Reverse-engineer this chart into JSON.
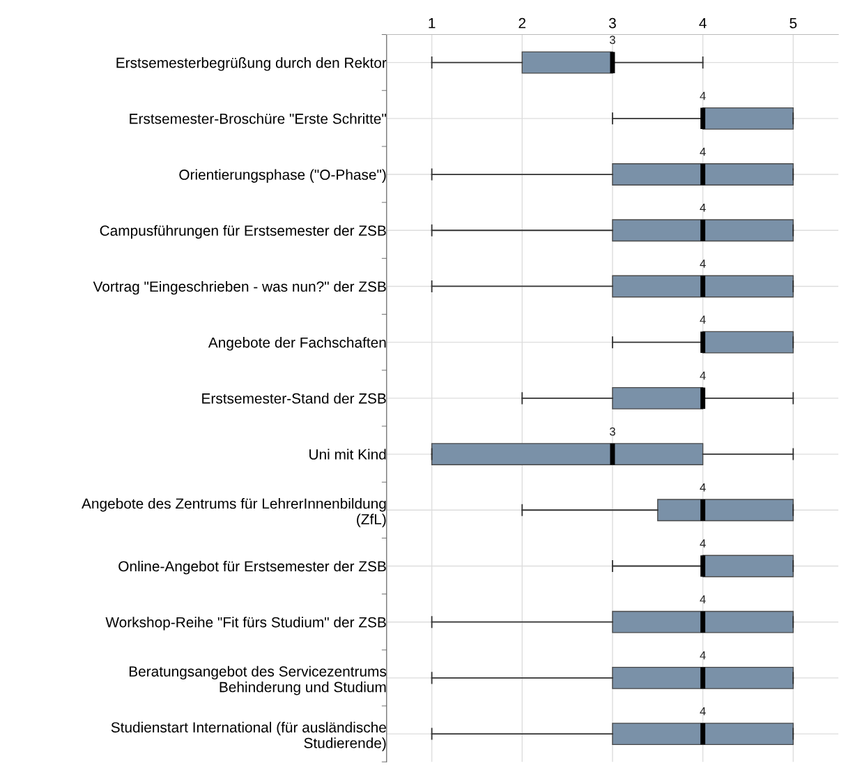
{
  "chart_data": {
    "type": "box",
    "orientation": "horizontal",
    "categories": [
      "Erstsemesterbegrüßung durch den Rektor",
      "Erstsemester-Broschüre \"Erste Schritte\"",
      "Orientierungsphase (\"O-Phase\")",
      "Campusführungen für Erstsemester der ZSB",
      "Vortrag \"Eingeschrieben - was nun?\" der ZSB",
      "Angebote der Fachschaften",
      "Erstsemester-Stand der ZSB",
      "Uni mit Kind",
      "Angebote des Zentrums für LehrerInnenbildung\n(ZfL)",
      "Online-Angebot für Erstsemester der ZSB",
      "Workshop-Reihe \"Fit fürs Studium\" der ZSB",
      "Beratungsangebot des Servicezentrums\nBehinderung und Studium",
      "Studienstart International (für ausländische\nStudierende)"
    ],
    "boxes": [
      {
        "low": 1,
        "q1": 2,
        "median": 3,
        "q3": 3,
        "high": 4
      },
      {
        "low": 3,
        "q1": 4,
        "median": 4,
        "q3": 5,
        "high": 5
      },
      {
        "low": 1,
        "q1": 3,
        "median": 4,
        "q3": 5,
        "high": 5
      },
      {
        "low": 1,
        "q1": 3,
        "median": 4,
        "q3": 5,
        "high": 5
      },
      {
        "low": 1,
        "q1": 3,
        "median": 4,
        "q3": 5,
        "high": 5
      },
      {
        "low": 3,
        "q1": 4,
        "median": 4,
        "q3": 5,
        "high": 5
      },
      {
        "low": 2,
        "q1": 3,
        "median": 4,
        "q3": 4,
        "high": 5
      },
      {
        "low": 1,
        "q1": 1,
        "median": 3,
        "q3": 4,
        "high": 5
      },
      {
        "low": 2,
        "q1": 3.5,
        "median": 4,
        "q3": 5,
        "high": 5
      },
      {
        "low": 3,
        "q1": 4,
        "median": 4,
        "q3": 5,
        "high": 5
      },
      {
        "low": 1,
        "q1": 3,
        "median": 4,
        "q3": 5,
        "high": 5
      },
      {
        "low": 1,
        "q1": 3,
        "median": 4,
        "q3": 5,
        "high": 5
      },
      {
        "low": 1,
        "q1": 3,
        "median": 4,
        "q3": 5,
        "high": 5
      }
    ],
    "value_labels": [
      "3",
      "4",
      "4",
      "4",
      "4",
      "4",
      "4",
      "3",
      "4",
      "4",
      "4",
      "4",
      "4"
    ],
    "color": "#7a91a8",
    "xlim": [
      0.5,
      5.5
    ],
    "xticks": [
      1,
      2,
      3,
      4,
      5
    ],
    "grid": true
  }
}
